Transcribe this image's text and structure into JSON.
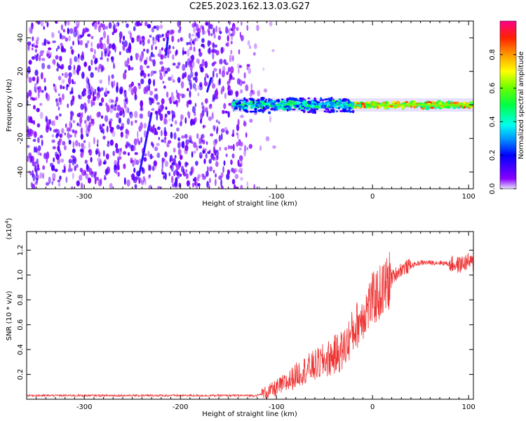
{
  "title": "C2E5.2023.162.13.03.G27",
  "chart_data": [
    {
      "type": "heatmap",
      "title": "C2E5.2023.162.13.03.G27",
      "xlabel": "Height of straight line (km)",
      "ylabel": "Frequency (Hz)",
      "xlim": [
        -360,
        105
      ],
      "ylim": [
        -50,
        50
      ],
      "xticks": [
        -300,
        -200,
        -100,
        0,
        100
      ],
      "yticks": [
        -40,
        -20,
        0,
        20,
        40
      ],
      "noise_region_x": [
        -360,
        -120
      ],
      "signal_band_x": [
        -145,
        105
      ],
      "signal_band_freq_hz": 0,
      "streaks": [
        {
          "x0": -243,
          "y0": -42,
          "x1": -230,
          "y1": -5
        },
        {
          "x0": -172,
          "y0": 8,
          "x1": -168,
          "y1": 16
        },
        {
          "x0": -215,
          "y0": 30,
          "x1": -213,
          "y1": 40
        }
      ],
      "colorbar": {
        "label": "Normalized spectral amplitude",
        "range": [
          0,
          1
        ],
        "ticks": [
          0.0,
          0.2,
          0.4,
          0.6,
          0.8
        ]
      }
    },
    {
      "type": "line",
      "xlabel": "Height of straight line (km)",
      "ylabel": "SNR (10 * v/v)",
      "y_scale_label": "(x10",
      "y_scale_exp": "4",
      "y_scale_close": ")",
      "xlim": [
        -360,
        105
      ],
      "ylim": [
        0,
        1.35
      ],
      "xticks": [
        -300,
        -200,
        -100,
        0,
        100
      ],
      "yticks": [
        0.2,
        0.4,
        0.6,
        0.8,
        1.0,
        1.2
      ],
      "color": "#ee3333",
      "trend": {
        "x": [
          -360,
          -120,
          -105,
          -90,
          -75,
          -60,
          -45,
          -30,
          -20,
          -10,
          0,
          10,
          20,
          30,
          50,
          70,
          90,
          100,
          105
        ],
        "y": [
          0.03,
          0.03,
          0.07,
          0.13,
          0.22,
          0.27,
          0.33,
          0.4,
          0.55,
          0.68,
          0.8,
          0.87,
          0.98,
          1.05,
          1.1,
          1.1,
          1.08,
          1.11,
          1.09
        ]
      }
    }
  ]
}
